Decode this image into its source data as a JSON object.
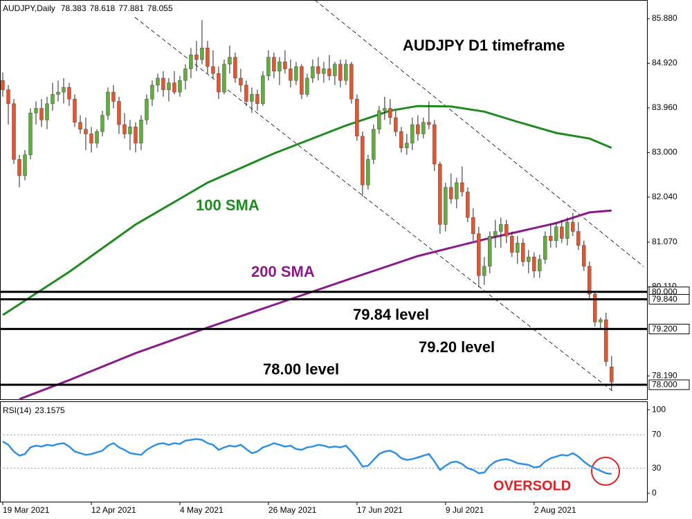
{
  "chart_data": {
    "type": "candlestick",
    "header": "AUDJPY,Daily",
    "title": "AUDJPY D1 timeframe",
    "up_color": "#62ad3c",
    "down_color": "#e4572e",
    "ohlc": [
      [
        84.55,
        84.72,
        84.2,
        84.35
      ],
      [
        84.35,
        84.45,
        83.6,
        84.05
      ],
      [
        84.05,
        84.15,
        82.75,
        82.85
      ],
      [
        82.85,
        82.95,
        82.25,
        82.5
      ],
      [
        82.5,
        83.05,
        82.4,
        82.95
      ],
      [
        82.95,
        83.95,
        82.85,
        83.85
      ],
      [
        83.85,
        84.1,
        83.6,
        83.95
      ],
      [
        83.95,
        84.15,
        83.55,
        83.7
      ],
      [
        83.7,
        84.2,
        83.5,
        84.05
      ],
      [
        84.05,
        84.5,
        83.9,
        84.25
      ],
      [
        84.25,
        84.55,
        84.1,
        84.3
      ],
      [
        84.3,
        84.6,
        84.05,
        84.4
      ],
      [
        84.4,
        84.5,
        84.0,
        84.15
      ],
      [
        84.15,
        84.25,
        83.55,
        83.65
      ],
      [
        83.65,
        83.8,
        83.4,
        83.5
      ],
      [
        83.5,
        83.75,
        83.05,
        83.4
      ],
      [
        83.4,
        83.55,
        83.0,
        83.2
      ],
      [
        83.2,
        83.5,
        83.1,
        83.45
      ],
      [
        83.45,
        83.9,
        83.35,
        83.8
      ],
      [
        83.8,
        84.4,
        83.7,
        84.3
      ],
      [
        84.3,
        84.45,
        83.95,
        84.1
      ],
      [
        84.1,
        84.2,
        83.4,
        83.6
      ],
      [
        83.6,
        83.85,
        83.3,
        83.4
      ],
      [
        83.4,
        83.7,
        83.05,
        83.55
      ],
      [
        83.55,
        83.65,
        83.0,
        83.2
      ],
      [
        83.2,
        83.8,
        83.05,
        83.7
      ],
      [
        83.7,
        84.25,
        83.6,
        84.15
      ],
      [
        84.15,
        84.55,
        84.0,
        84.45
      ],
      [
        84.45,
        84.7,
        84.3,
        84.6
      ],
      [
        84.6,
        84.75,
        84.2,
        84.35
      ],
      [
        84.35,
        84.6,
        84.1,
        84.5
      ],
      [
        84.5,
        84.75,
        84.25,
        84.3
      ],
      [
        84.3,
        84.65,
        84.2,
        84.55
      ],
      [
        84.55,
        84.9,
        84.35,
        84.8
      ],
      [
        84.8,
        85.25,
        84.6,
        85.1
      ],
      [
        85.1,
        85.4,
        84.75,
        85.0
      ],
      [
        85.0,
        85.85,
        84.9,
        85.25
      ],
      [
        85.25,
        85.4,
        84.7,
        84.85
      ],
      [
        84.85,
        85.2,
        84.6,
        84.7
      ],
      [
        84.7,
        84.85,
        84.15,
        84.3
      ],
      [
        84.3,
        85.0,
        84.25,
        84.9
      ],
      [
        84.9,
        85.3,
        84.7,
        85.05
      ],
      [
        85.05,
        85.15,
        84.5,
        84.6
      ],
      [
        84.6,
        84.8,
        84.3,
        84.45
      ],
      [
        84.45,
        84.55,
        84.0,
        84.1
      ],
      [
        84.1,
        84.4,
        83.85,
        84.25
      ],
      [
        84.25,
        84.35,
        83.9,
        84.05
      ],
      [
        84.05,
        84.75,
        84.0,
        84.65
      ],
      [
        84.65,
        85.2,
        84.55,
        85.05
      ],
      [
        85.05,
        85.15,
        84.6,
        84.75
      ],
      [
        84.75,
        85.05,
        84.45,
        84.95
      ],
      [
        84.95,
        85.2,
        84.7,
        84.8
      ],
      [
        84.8,
        85.0,
        84.4,
        84.55
      ],
      [
        84.55,
        84.95,
        84.45,
        84.85
      ],
      [
        84.85,
        84.9,
        84.15,
        84.25
      ],
      [
        84.25,
        84.7,
        84.2,
        84.6
      ],
      [
        84.6,
        85.0,
        84.5,
        84.85
      ],
      [
        84.85,
        85.05,
        84.55,
        84.7
      ],
      [
        84.7,
        84.95,
        84.5,
        84.8
      ],
      [
        84.8,
        85.1,
        84.55,
        84.65
      ],
      [
        84.65,
        84.95,
        84.45,
        84.9
      ],
      [
        84.9,
        85.0,
        84.4,
        84.55
      ],
      [
        84.55,
        85.0,
        84.45,
        84.9
      ],
      [
        84.9,
        84.95,
        84.05,
        84.15
      ],
      [
        84.15,
        84.25,
        83.25,
        83.35
      ],
      [
        83.35,
        83.45,
        82.05,
        82.3
      ],
      [
        82.3,
        82.95,
        82.2,
        82.85
      ],
      [
        82.85,
        83.6,
        82.75,
        83.5
      ],
      [
        83.5,
        84.0,
        83.4,
        83.9
      ],
      [
        83.9,
        84.2,
        83.7,
        83.95
      ],
      [
        83.95,
        84.15,
        83.6,
        83.75
      ],
      [
        83.75,
        83.9,
        83.35,
        83.45
      ],
      [
        83.45,
        83.55,
        83.0,
        83.1
      ],
      [
        83.1,
        83.4,
        82.95,
        83.2
      ],
      [
        83.2,
        83.75,
        83.05,
        83.6
      ],
      [
        83.6,
        83.8,
        83.25,
        83.4
      ],
      [
        83.4,
        83.75,
        83.3,
        83.65
      ],
      [
        83.65,
        84.1,
        83.5,
        83.6
      ],
      [
        83.6,
        83.7,
        82.6,
        82.75
      ],
      [
        82.75,
        82.8,
        81.25,
        81.45
      ],
      [
        81.45,
        82.35,
        81.3,
        82.25
      ],
      [
        82.25,
        82.55,
        81.9,
        82.0
      ],
      [
        82.0,
        82.45,
        81.8,
        82.35
      ],
      [
        82.35,
        82.7,
        82.05,
        82.15
      ],
      [
        82.15,
        82.25,
        81.5,
        81.6
      ],
      [
        81.6,
        81.8,
        81.1,
        81.25
      ],
      [
        81.25,
        81.4,
        80.1,
        80.35
      ],
      [
        80.35,
        80.75,
        80.15,
        80.55
      ],
      [
        80.55,
        81.3,
        80.4,
        81.2
      ],
      [
        81.2,
        81.55,
        80.95,
        81.3
      ],
      [
        81.3,
        81.6,
        80.95,
        81.45
      ],
      [
        81.45,
        81.55,
        81.05,
        81.2
      ],
      [
        81.2,
        81.3,
        80.75,
        80.85
      ],
      [
        80.85,
        81.2,
        80.6,
        81.05
      ],
      [
        81.05,
        81.15,
        80.55,
        80.65
      ],
      [
        80.65,
        80.9,
        80.4,
        80.75
      ],
      [
        80.75,
        80.85,
        80.3,
        80.45
      ],
      [
        80.45,
        80.8,
        80.3,
        80.7
      ],
      [
        80.7,
        81.3,
        80.6,
        81.2
      ],
      [
        81.2,
        81.45,
        80.95,
        81.1
      ],
      [
        81.1,
        81.5,
        80.95,
        81.4
      ],
      [
        81.4,
        81.55,
        81.05,
        81.15
      ],
      [
        81.15,
        81.6,
        81.0,
        81.5
      ],
      [
        81.5,
        81.7,
        81.2,
        81.3
      ],
      [
        81.3,
        81.5,
        80.9,
        81.0
      ],
      [
        81.0,
        81.1,
        80.45,
        80.55
      ],
      [
        80.55,
        80.65,
        79.85,
        79.95
      ],
      [
        79.95,
        80.0,
        79.25,
        79.35
      ],
      [
        79.35,
        79.45,
        79.2,
        79.4
      ],
      [
        79.4,
        79.55,
        78.4,
        78.5
      ],
      [
        78.383,
        78.618,
        77.881,
        78.055
      ]
    ],
    "xlim": [
      -0.5,
      116.4
    ],
    "xticks": [
      {
        "value": 0,
        "label": "19 Mar 2021"
      },
      {
        "value": 16,
        "label": "12 Apr 2021"
      },
      {
        "value": 32,
        "label": "4 May 2021"
      },
      {
        "value": 48,
        "label": "26 May 2021"
      },
      {
        "value": 64,
        "label": "17 Jun 2021"
      },
      {
        "value": 80,
        "label": "9 Jul 2021"
      },
      {
        "value": 96,
        "label": "2 Aug 2021"
      }
    ],
    "ylim": [
      77.687,
      86.282
    ],
    "yticks": [
      {
        "value": 85.88,
        "label": "85.880"
      },
      {
        "value": 84.92,
        "label": "84.920"
      },
      {
        "value": 83.96,
        "label": "83.960"
      },
      {
        "value": 83.0,
        "label": "83.000"
      },
      {
        "value": 82.04,
        "label": "82.040"
      },
      {
        "value": 81.07,
        "label": "81.070"
      },
      {
        "value": 80.11,
        "label": "80.110"
      },
      {
        "value": 78.19,
        "label": "78.190"
      }
    ],
    "series": [
      {
        "name": "100 SMA",
        "color": "#1f8a1f",
        "x": [
          0,
          12,
          24,
          37,
          49,
          62,
          70,
          75,
          81,
          87,
          93,
          100,
          106,
          110
        ],
        "values": [
          79.5,
          80.43,
          81.45,
          82.35,
          82.98,
          83.58,
          83.9,
          84.0,
          83.99,
          83.88,
          83.66,
          83.42,
          83.3,
          83.1
        ]
      },
      {
        "name": "200 SMA",
        "color": "#8a1a8a",
        "x": [
          3,
          12,
          24,
          37,
          49,
          62,
          75,
          81,
          87,
          93,
          100,
          106,
          110
        ],
        "values": [
          77.69,
          78.1,
          78.68,
          79.23,
          79.72,
          80.25,
          80.77,
          80.95,
          81.13,
          81.29,
          81.48,
          81.71,
          81.75
        ]
      }
    ],
    "levels": [
      {
        "value": 80.0,
        "label": "80.000"
      },
      {
        "value": 79.84,
        "label": "79.840"
      },
      {
        "value": 79.2,
        "label": "79.200"
      },
      {
        "value": 78.0,
        "label": "78.000"
      }
    ],
    "annotations": [
      "79.84 level",
      "79.20 level",
      "78.00 level",
      "OVERSOLD"
    ],
    "rsi": {
      "name": "RSI(14)",
      "color": "#2f8fe0",
      "ylim": [
        -10,
        110
      ],
      "yticks": [
        100,
        0
      ],
      "levels": [
        70,
        30
      ],
      "values": [
        62,
        58,
        50,
        45,
        47,
        55,
        57,
        56,
        58,
        57,
        59,
        60,
        56,
        50,
        48,
        46,
        47,
        49,
        51,
        57,
        60,
        55,
        52,
        48,
        47,
        46,
        52,
        56,
        59,
        60,
        58,
        60,
        59,
        63,
        64,
        65,
        64,
        60,
        58,
        52,
        55,
        57,
        56,
        58,
        53,
        48,
        50,
        55,
        57,
        60,
        58,
        56,
        57,
        53,
        52,
        55,
        56,
        58,
        57,
        55,
        56,
        55,
        57,
        50,
        42,
        32,
        33,
        40,
        47,
        50,
        51,
        48,
        42,
        40,
        41,
        43,
        45,
        47,
        38,
        28,
        33,
        37,
        38,
        35,
        30,
        28,
        24,
        25,
        33,
        38,
        40,
        41,
        39,
        36,
        35,
        34,
        31,
        32,
        38,
        42,
        44,
        46,
        45,
        48,
        44,
        38,
        33,
        30,
        27,
        24,
        23.1575
      ]
    }
  }
}
